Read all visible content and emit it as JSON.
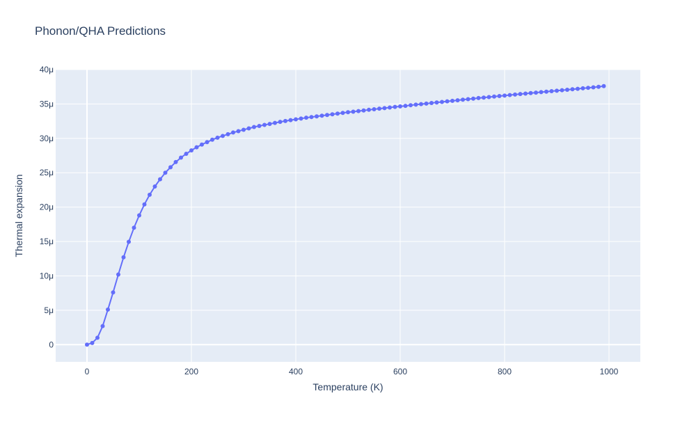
{
  "chart_data": {
    "type": "line",
    "title": "Phonon/QHA Predictions",
    "xlabel": "Temperature (K)",
    "ylabel": "Thermal expansion",
    "xlim": [
      -60,
      1060
    ],
    "ylim": [
      -2.5,
      40
    ],
    "x_ticks": [
      0,
      200,
      400,
      600,
      800,
      1000
    ],
    "x_tick_labels": [
      "0",
      "200",
      "400",
      "600",
      "800",
      "1000"
    ],
    "y_ticks": [
      0,
      5,
      10,
      15,
      20,
      25,
      30,
      35,
      40
    ],
    "y_tick_labels": [
      "0",
      "5μ",
      "10μ",
      "15μ",
      "20μ",
      "25μ",
      "30μ",
      "35μ",
      "40μ"
    ],
    "y_unit_multiplier": 1e-06,
    "grid": true,
    "legend": "none",
    "mode": "lines+markers",
    "colors": {
      "series": "#636efa",
      "plot_bg": "#e5ecf6",
      "grid": "#ffffff",
      "text": "#2a3f5f"
    },
    "series": [
      {
        "x": [
          0,
          10,
          20,
          30,
          40,
          50,
          60,
          70,
          80,
          90,
          100,
          110,
          120,
          130,
          140,
          150,
          160,
          170,
          180,
          190,
          200,
          210,
          220,
          230,
          240,
          250,
          260,
          270,
          280,
          290,
          300,
          310,
          320,
          330,
          340,
          350,
          360,
          370,
          380,
          390,
          400,
          410,
          420,
          430,
          440,
          450,
          460,
          470,
          480,
          490,
          500,
          510,
          520,
          530,
          540,
          550,
          560,
          570,
          580,
          590,
          600,
          610,
          620,
          630,
          640,
          650,
          660,
          670,
          680,
          690,
          700,
          710,
          720,
          730,
          740,
          750,
          760,
          770,
          780,
          790,
          800,
          810,
          820,
          830,
          840,
          850,
          860,
          870,
          880,
          890,
          900,
          910,
          920,
          930,
          940,
          950,
          960,
          970,
          980,
          990
        ],
        "values": [
          0,
          0.25,
          1.0,
          2.7,
          5.1,
          7.6,
          10.2,
          12.7,
          14.95,
          17.0,
          18.8,
          20.4,
          21.8,
          23.0,
          24.05,
          25.0,
          25.8,
          26.55,
          27.2,
          27.75,
          28.25,
          28.7,
          29.1,
          29.45,
          29.8,
          30.1,
          30.35,
          30.6,
          30.85,
          31.05,
          31.25,
          31.45,
          31.65,
          31.8,
          31.95,
          32.1,
          32.25,
          32.4,
          32.52,
          32.65,
          32.77,
          32.88,
          33.0,
          33.1,
          33.2,
          33.3,
          33.4,
          33.5,
          33.6,
          33.7,
          33.8,
          33.88,
          33.97,
          34.06,
          34.15,
          34.23,
          34.32,
          34.4,
          34.49,
          34.57,
          34.65,
          34.73,
          34.82,
          34.9,
          34.98,
          35.06,
          35.14,
          35.22,
          35.3,
          35.38,
          35.46,
          35.54,
          35.62,
          35.7,
          35.78,
          35.86,
          35.93,
          36.0,
          36.08,
          36.15,
          36.22,
          36.3,
          36.37,
          36.44,
          36.51,
          36.58,
          36.65,
          36.72,
          36.79,
          36.86,
          36.93,
          37.0,
          37.07,
          37.14,
          37.21,
          37.28,
          37.35,
          37.42,
          37.5,
          37.6
        ]
      }
    ]
  }
}
